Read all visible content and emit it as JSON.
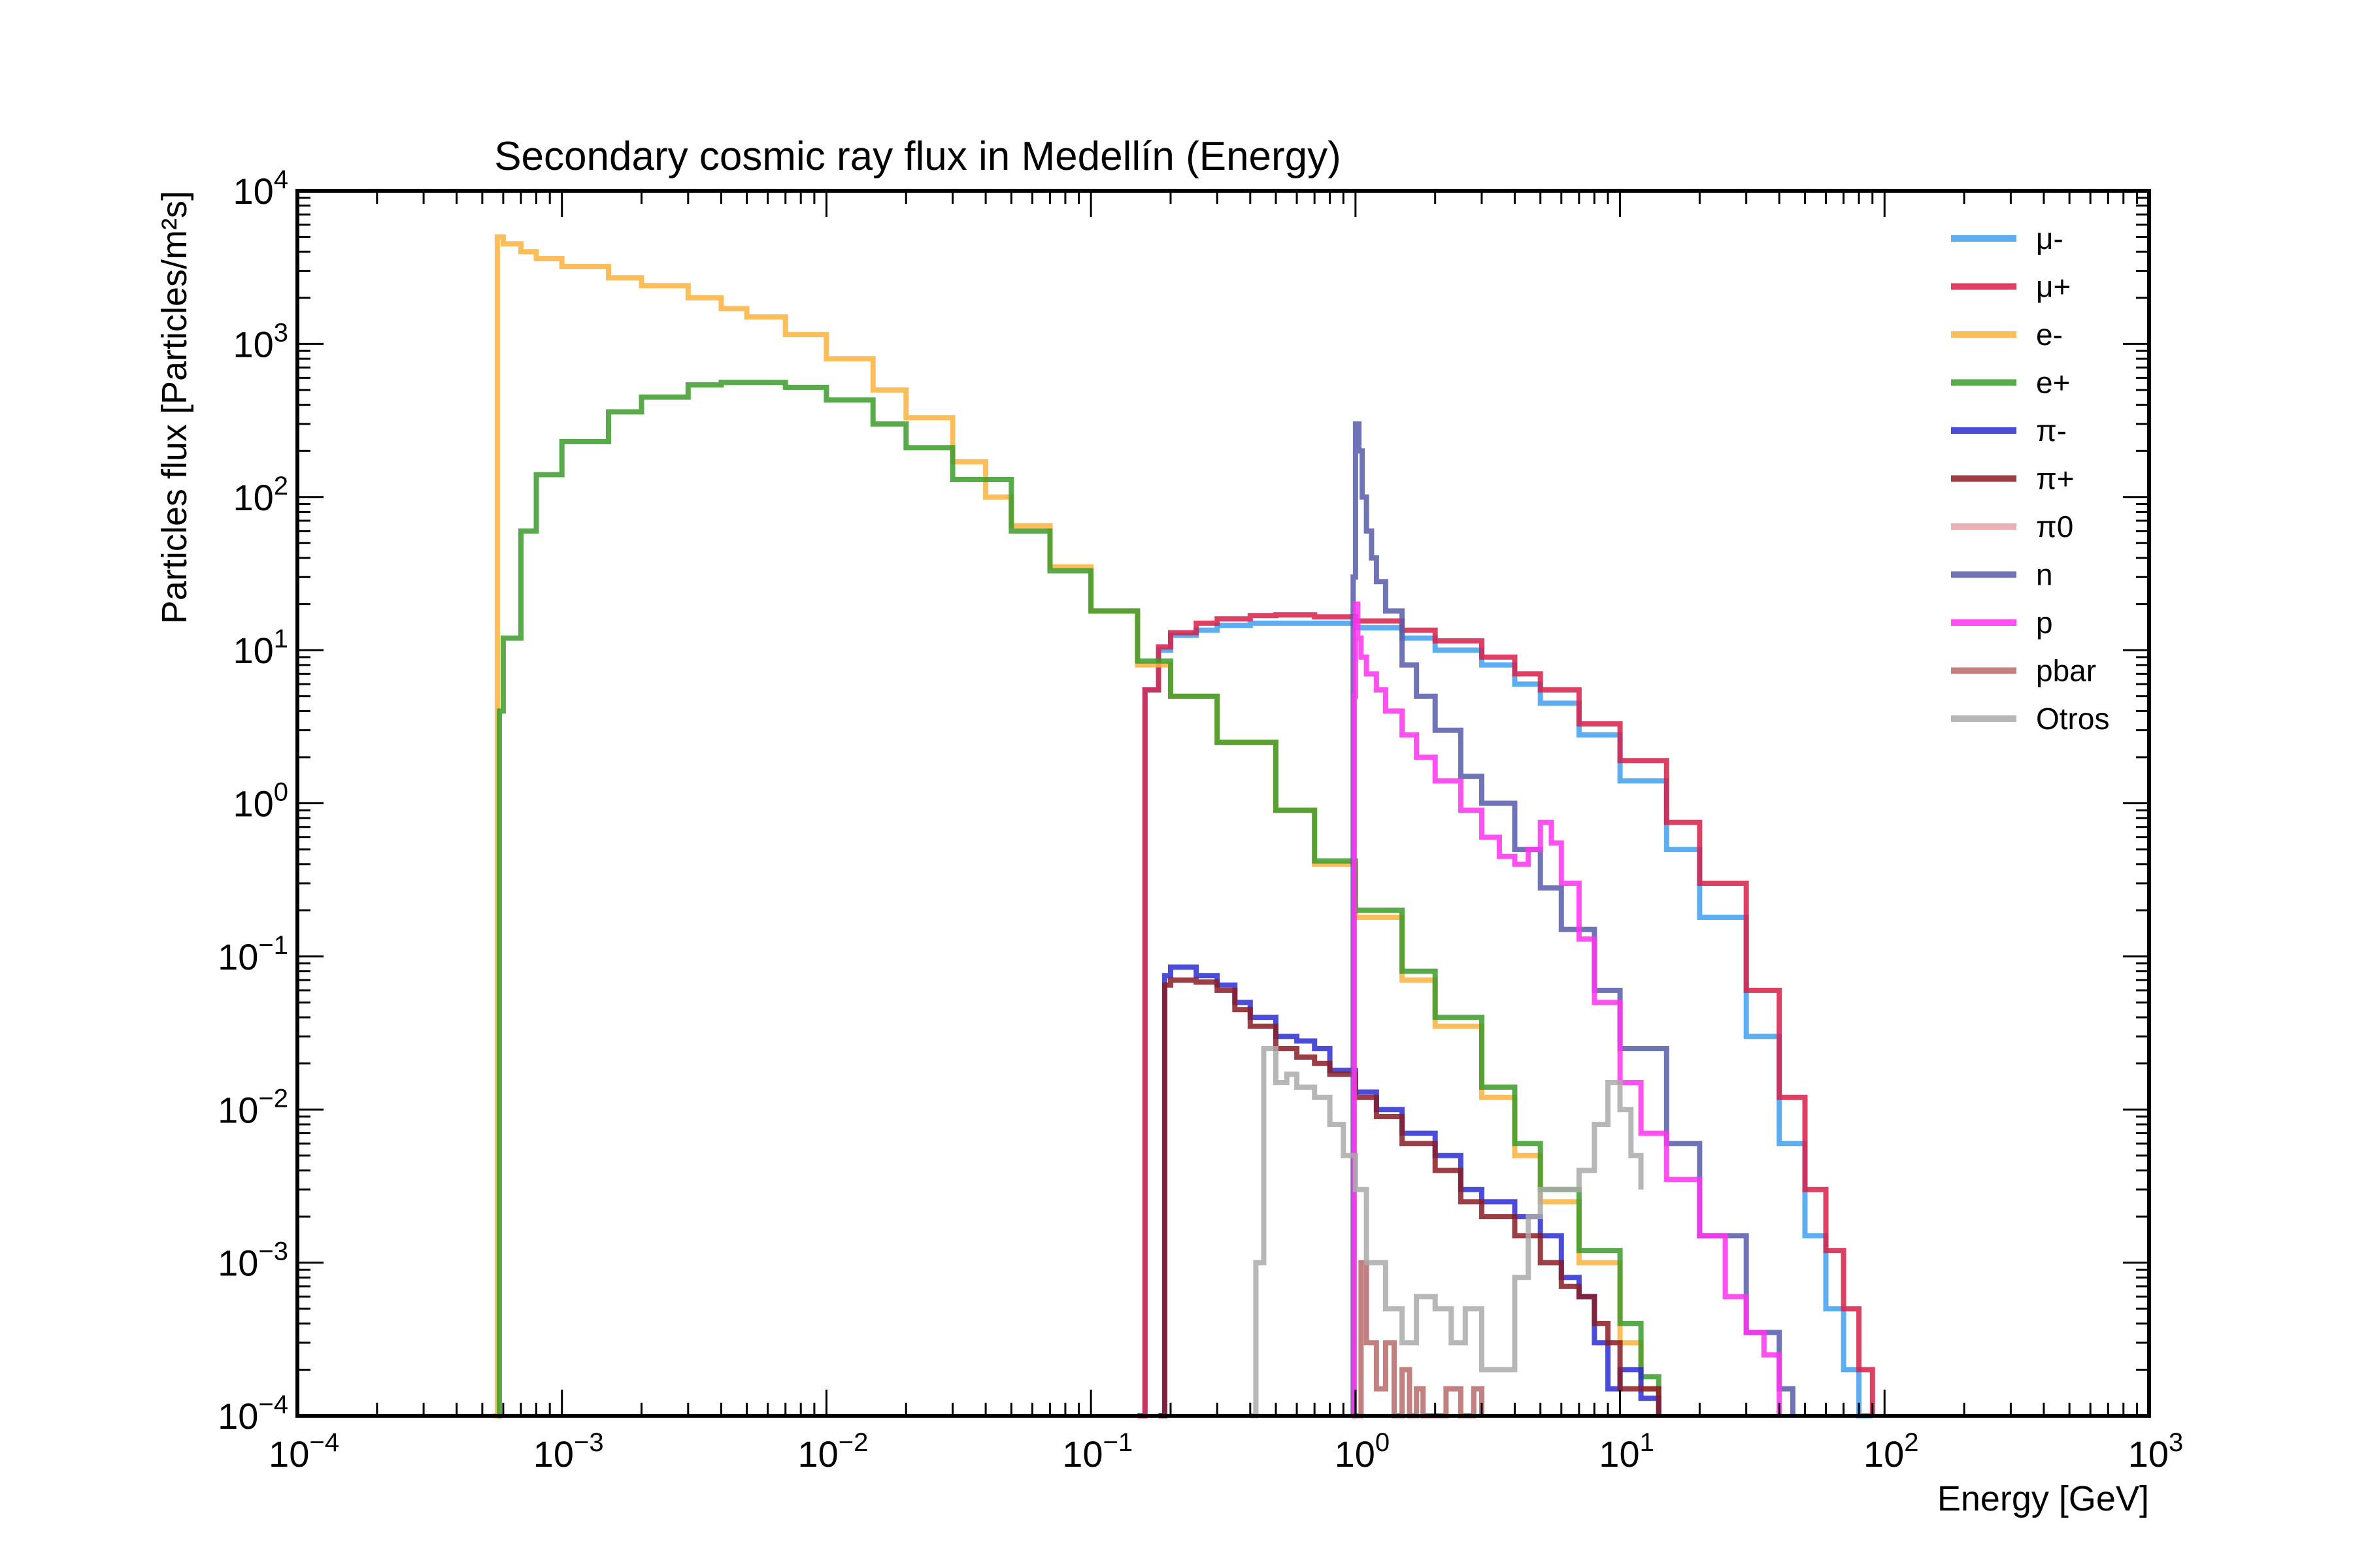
{
  "chart_data": {
    "type": "line",
    "style": "step-histogram",
    "title": "Secondary cosmic ray flux in Medellín (Energy)",
    "xlabel": "Energy [GeV]",
    "ylabel": "Particles flux [Particles/m²s]",
    "xscale": "log",
    "yscale": "log",
    "xlim": [
      0.0001,
      1000
    ],
    "ylim": [
      0.0001,
      10000
    ],
    "x_ticks": [
      {
        "value": 0.0001,
        "base": "10",
        "exp": "−4"
      },
      {
        "value": 0.001,
        "base": "10",
        "exp": "−3"
      },
      {
        "value": 0.01,
        "base": "10",
        "exp": "−2"
      },
      {
        "value": 0.1,
        "base": "10",
        "exp": "−1"
      },
      {
        "value": 1,
        "base": "10",
        "exp": "0"
      },
      {
        "value": 10,
        "base": "10",
        "exp": "1"
      },
      {
        "value": 100,
        "base": "10",
        "exp": "2"
      },
      {
        "value": 1000,
        "base": "10",
        "exp": "3"
      }
    ],
    "y_ticks": [
      {
        "value": 0.0001,
        "base": "10",
        "exp": "−4"
      },
      {
        "value": 0.001,
        "base": "10",
        "exp": "−3"
      },
      {
        "value": 0.01,
        "base": "10",
        "exp": "−2"
      },
      {
        "value": 0.1,
        "base": "10",
        "exp": "−1"
      },
      {
        "value": 1,
        "base": "10",
        "exp": "0"
      },
      {
        "value": 10,
        "base": "10",
        "exp": "1"
      },
      {
        "value": 100,
        "base": "10",
        "exp": "2"
      },
      {
        "value": 1000,
        "base": "10",
        "exp": "3"
      },
      {
        "value": 10000,
        "base": "10",
        "exp": "4"
      }
    ],
    "grid": false,
    "legend_position": "top-right",
    "series": [
      {
        "name": "μ-",
        "color": "#3f9ff0",
        "x": [
          0.15,
          0.16,
          0.18,
          0.2,
          0.25,
          0.3,
          0.4,
          0.5,
          0.7,
          1,
          1.5,
          2,
          3,
          4,
          5,
          7,
          10,
          15,
          20,
          30,
          40,
          50,
          60,
          70,
          80,
          90
        ],
        "y": [
          0.0001,
          5.5,
          10,
          12.5,
          13.5,
          14.5,
          15,
          15,
          15,
          14,
          12,
          10,
          8,
          6,
          4.5,
          2.8,
          1.4,
          0.5,
          0.18,
          0.03,
          0.006,
          0.0015,
          0.0005,
          0.0002,
          0.0001,
          0.0001
        ]
      },
      {
        "name": "μ+",
        "color": "#d81f48",
        "x": [
          0.15,
          0.16,
          0.18,
          0.2,
          0.25,
          0.3,
          0.4,
          0.5,
          0.7,
          1,
          1.5,
          2,
          3,
          4,
          5,
          7,
          10,
          15,
          20,
          30,
          40,
          50,
          60,
          70,
          80,
          90
        ],
        "y": [
          0.0001,
          5.5,
          10.5,
          13,
          15,
          16,
          16.8,
          17,
          16.5,
          15.5,
          13.5,
          11.5,
          9,
          7,
          5.5,
          3.3,
          1.9,
          0.75,
          0.3,
          0.06,
          0.012,
          0.003,
          0.0012,
          0.0005,
          0.0002,
          0.0001
        ]
      },
      {
        "name": "e-",
        "color": "#fbb33d",
        "x": [
          0.00055,
          0.00057,
          0.0006,
          0.0007,
          0.0008,
          0.001,
          0.0015,
          0.002,
          0.003,
          0.004,
          0.005,
          0.007,
          0.01,
          0.015,
          0.02,
          0.03,
          0.04,
          0.05,
          0.07,
          0.1,
          0.15,
          0.2,
          0.3,
          0.5,
          0.7,
          1,
          1.5,
          2,
          3,
          4,
          5,
          7,
          10,
          12,
          14
        ],
        "y": [
          0.0001,
          5000,
          4500,
          4000,
          3600,
          3200,
          2700,
          2400,
          2000,
          1700,
          1500,
          1150,
          800,
          500,
          330,
          170,
          100,
          65,
          35,
          18,
          8,
          5,
          2.5,
          0.9,
          0.4,
          0.18,
          0.07,
          0.035,
          0.012,
          0.005,
          0.0025,
          0.001,
          0.0003,
          0.00015,
          0.0001
        ]
      },
      {
        "name": "e+",
        "color": "#3b9b2a",
        "x": [
          0.00057,
          0.00058,
          0.0006,
          0.0007,
          0.0008,
          0.001,
          0.0015,
          0.002,
          0.003,
          0.004,
          0.005,
          0.007,
          0.01,
          0.015,
          0.02,
          0.03,
          0.05,
          0.07,
          0.1,
          0.15,
          0.2,
          0.3,
          0.5,
          0.7,
          1,
          1.5,
          2,
          3,
          4,
          5,
          7,
          10,
          12,
          14
        ],
        "y": [
          0.0001,
          4,
          12,
          60,
          140,
          230,
          360,
          450,
          540,
          560,
          560,
          520,
          430,
          300,
          210,
          130,
          60,
          33,
          18,
          8.5,
          5,
          2.5,
          0.9,
          0.42,
          0.2,
          0.08,
          0.04,
          0.014,
          0.006,
          0.003,
          0.0012,
          0.0004,
          0.00018,
          0.0001
        ]
      },
      {
        "name": "π-",
        "color": "#2b2dd0",
        "x": [
          0.18,
          0.19,
          0.2,
          0.22,
          0.25,
          0.3,
          0.35,
          0.4,
          0.5,
          0.6,
          0.7,
          0.8,
          1,
          1.2,
          1.5,
          2,
          2.5,
          3,
          4,
          5,
          6,
          7,
          8,
          9,
          10,
          12,
          14
        ],
        "y": [
          0.0001,
          0.075,
          0.085,
          0.085,
          0.075,
          0.065,
          0.05,
          0.04,
          0.03,
          0.028,
          0.025,
          0.018,
          0.013,
          0.01,
          0.007,
          0.005,
          0.003,
          0.0025,
          0.002,
          0.0015,
          0.0008,
          0.0006,
          0.0003,
          0.00015,
          0.0002,
          0.00013,
          0.0001
        ]
      },
      {
        "name": "π+",
        "color": "#8a1c24",
        "x": [
          0.18,
          0.19,
          0.2,
          0.22,
          0.25,
          0.3,
          0.35,
          0.4,
          0.5,
          0.6,
          0.7,
          0.8,
          1,
          1.2,
          1.5,
          2,
          2.5,
          3,
          4,
          5,
          6,
          7,
          8,
          9,
          10,
          12,
          14
        ],
        "y": [
          0.0001,
          0.065,
          0.07,
          0.07,
          0.068,
          0.06,
          0.045,
          0.035,
          0.025,
          0.022,
          0.02,
          0.017,
          0.012,
          0.009,
          0.006,
          0.004,
          0.0025,
          0.002,
          0.0015,
          0.001,
          0.0007,
          0.0006,
          0.0004,
          0.0003,
          0.00015,
          0.00015,
          0.0001
        ]
      },
      {
        "name": "π0",
        "color": "#e6a5a5",
        "x": [],
        "y": []
      },
      {
        "name": "n",
        "color": "#575caa",
        "x": [
          0.97,
          0.98,
          1,
          1.03,
          1.06,
          1.1,
          1.15,
          1.2,
          1.3,
          1.5,
          1.7,
          2,
          2.5,
          3,
          4,
          5,
          6,
          8,
          10,
          15,
          20,
          30,
          40,
          45
        ],
        "y": [
          0.0001,
          30,
          300,
          200,
          100,
          60,
          40,
          28,
          18,
          8,
          5,
          3,
          1.5,
          1,
          0.5,
          0.28,
          0.15,
          0.06,
          0.025,
          0.006,
          0.0015,
          0.00035,
          0.00015,
          0.0001
        ]
      },
      {
        "name": "p",
        "color": "#ff33f0",
        "x": [
          0.97,
          0.99,
          1,
          1.02,
          1.05,
          1.1,
          1.2,
          1.3,
          1.5,
          1.7,
          2,
          2.5,
          3,
          3.5,
          4,
          4.5,
          5,
          5.5,
          6,
          7,
          8,
          10,
          12,
          15,
          20,
          25,
          30,
          35,
          40
        ],
        "y": [
          0.0001,
          5,
          20,
          12,
          9,
          7,
          5.5,
          4,
          2.8,
          2,
          1.4,
          0.9,
          0.6,
          0.45,
          0.4,
          0.5,
          0.75,
          0.55,
          0.3,
          0.13,
          0.05,
          0.015,
          0.007,
          0.0035,
          0.0015,
          0.0006,
          0.00035,
          0.00025,
          0.0001
        ]
      },
      {
        "name": "pbar",
        "color": "#b86a6a",
        "x": [
          1,
          1.05,
          1.1,
          1.2,
          1.3,
          1.4,
          1.5,
          1.6,
          1.7,
          1.8,
          2,
          2.2,
          2.5,
          2.8,
          3
        ],
        "y": [
          0.0001,
          0.001,
          0.0003,
          0.00015,
          0.0003,
          0.0001,
          0.0002,
          0.0001,
          0.00015,
          0.0001,
          0.0001,
          0.00015,
          0.0001,
          0.00015,
          0.0001
        ]
      },
      {
        "name": "Otros",
        "color": "#aaaaaa",
        "x": [
          0.4,
          0.42,
          0.45,
          0.5,
          0.55,
          0.6,
          0.7,
          0.8,
          0.9,
          1,
          1.1,
          1.3,
          1.5,
          1.7,
          2,
          2.3,
          2.6,
          3,
          3.5,
          4,
          4.5,
          5,
          6,
          7,
          8,
          9,
          10,
          11,
          12
        ],
        "y": [
          0.0001,
          0.001,
          0.025,
          0.015,
          0.017,
          0.014,
          0.012,
          0.008,
          0.005,
          0.003,
          0.001,
          0.0005,
          0.0003,
          0.0006,
          0.0005,
          0.0003,
          0.0005,
          0.0002,
          0.0002,
          0.0008,
          0.002,
          0.003,
          0.003,
          0.004,
          0.008,
          0.015,
          0.01,
          0.005,
          0.003
        ]
      }
    ]
  }
}
